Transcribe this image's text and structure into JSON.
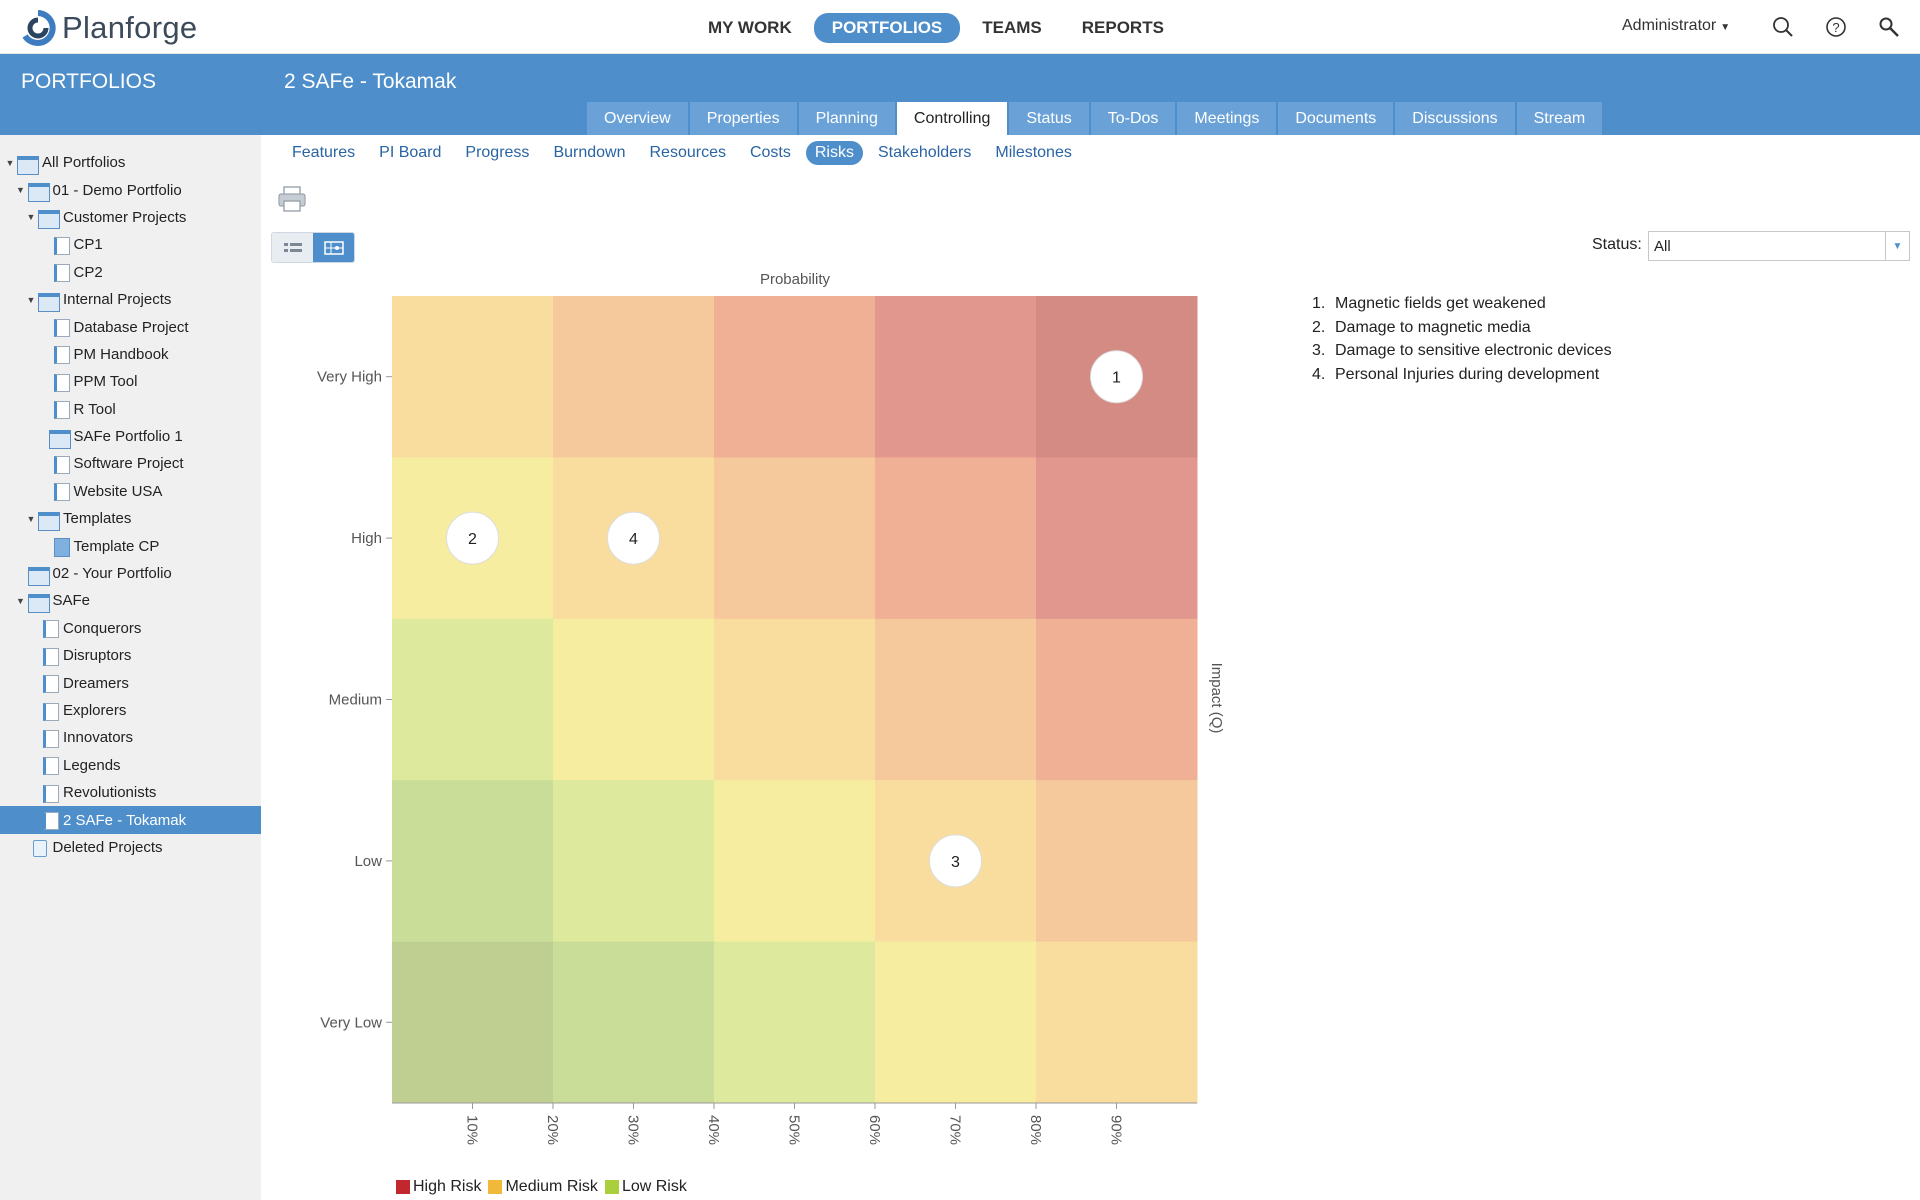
{
  "app": {
    "logo_text": "Planforge"
  },
  "nav": {
    "items": [
      {
        "label": "MY WORK",
        "active": false
      },
      {
        "label": "PORTFOLIOS",
        "active": true
      },
      {
        "label": "TEAMS",
        "active": false
      },
      {
        "label": "REPORTS",
        "active": false
      }
    ],
    "user": "Administrator"
  },
  "sidebar": {
    "title": "PORTFOLIOS",
    "tree": [
      {
        "label": "All Portfolios",
        "depth": 0,
        "twisty": "open",
        "icon": "portfolio"
      },
      {
        "label": "01 - Demo Portfolio",
        "depth": 1,
        "twisty": "open",
        "icon": "portfolio"
      },
      {
        "label": "Customer Projects",
        "depth": 2,
        "twisty": "open",
        "icon": "portfolio"
      },
      {
        "label": "CP1",
        "depth": 3,
        "twisty": "none",
        "icon": "project"
      },
      {
        "label": "CP2",
        "depth": 3,
        "twisty": "none",
        "icon": "project"
      },
      {
        "label": "Internal Projects",
        "depth": 2,
        "twisty": "open",
        "icon": "portfolio"
      },
      {
        "label": "Database Project",
        "depth": 3,
        "twisty": "none",
        "icon": "project"
      },
      {
        "label": "PM Handbook",
        "depth": 3,
        "twisty": "none",
        "icon": "project"
      },
      {
        "label": "PPM Tool",
        "depth": 3,
        "twisty": "none",
        "icon": "project"
      },
      {
        "label": "R Tool",
        "depth": 3,
        "twisty": "none",
        "icon": "project"
      },
      {
        "label": "SAFe Portfolio 1",
        "depth": 3,
        "twisty": "none",
        "icon": "portfolio"
      },
      {
        "label": "Software Project",
        "depth": 3,
        "twisty": "none",
        "icon": "project"
      },
      {
        "label": "Website USA",
        "depth": 3,
        "twisty": "none",
        "icon": "project"
      },
      {
        "label": "Templates",
        "depth": 2,
        "twisty": "open",
        "icon": "portfolio"
      },
      {
        "label": "Template CP",
        "depth": 3,
        "twisty": "none",
        "icon": "template"
      },
      {
        "label": "02 - Your Portfolio",
        "depth": 1,
        "twisty": "none",
        "icon": "portfolio"
      },
      {
        "label": "SAFe",
        "depth": 1,
        "twisty": "open",
        "icon": "portfolio"
      },
      {
        "label": "Conquerors",
        "depth": 2,
        "twisty": "none",
        "icon": "project"
      },
      {
        "label": "Disruptors",
        "depth": 2,
        "twisty": "none",
        "icon": "project"
      },
      {
        "label": "Dreamers",
        "depth": 2,
        "twisty": "none",
        "icon": "project"
      },
      {
        "label": "Explorers",
        "depth": 2,
        "twisty": "none",
        "icon": "project"
      },
      {
        "label": "Innovators",
        "depth": 2,
        "twisty": "none",
        "icon": "project"
      },
      {
        "label": "Legends",
        "depth": 2,
        "twisty": "none",
        "icon": "project"
      },
      {
        "label": "Revolutionists",
        "depth": 2,
        "twisty": "none",
        "icon": "project"
      },
      {
        "label": "2 SAFe - Tokamak",
        "depth": 2,
        "twisty": "none",
        "icon": "project",
        "selected": true
      },
      {
        "label": "Deleted Projects",
        "depth": 1,
        "twisty": "none",
        "icon": "deleted"
      }
    ]
  },
  "page": {
    "title": "2 SAFe - Tokamak",
    "tabs": [
      {
        "label": "Overview",
        "active": false
      },
      {
        "label": "Properties",
        "active": false
      },
      {
        "label": "Planning",
        "active": false
      },
      {
        "label": "Controlling",
        "active": true
      },
      {
        "label": "Status",
        "active": false
      },
      {
        "label": "To-Dos",
        "active": false
      },
      {
        "label": "Meetings",
        "active": false
      },
      {
        "label": "Documents",
        "active": false
      },
      {
        "label": "Discussions",
        "active": false
      },
      {
        "label": "Stream",
        "active": false
      }
    ],
    "subtabs": [
      {
        "label": "Features",
        "active": false
      },
      {
        "label": "PI Board",
        "active": false
      },
      {
        "label": "Progress",
        "active": false
      },
      {
        "label": "Burndown",
        "active": false
      },
      {
        "label": "Resources",
        "active": false
      },
      {
        "label": "Costs",
        "active": false
      },
      {
        "label": "Risks",
        "active": true
      },
      {
        "label": "Stakeholders",
        "active": false
      },
      {
        "label": "Milestones",
        "active": false
      }
    ],
    "status_filter": {
      "label": "Status:",
      "value": "All"
    },
    "risks": [
      {
        "num": "1.",
        "label": "Magnetic fields get weakened"
      },
      {
        "num": "2.",
        "label": "Damage to magnetic media"
      },
      {
        "num": "3.",
        "label": "Damage to sensitive electronic devices"
      },
      {
        "num": "4.",
        "label": "Personal Injuries during development"
      }
    ]
  },
  "chart_data": {
    "type": "heatmap",
    "xlabel": "Probability",
    "ylabel": "Impact (Q)",
    "x_ticks": [
      "10%",
      "20%",
      "30%",
      "40%",
      "50%",
      "60%",
      "70%",
      "80%",
      "90%"
    ],
    "y_levels_top_to_bottom": [
      "Very High",
      "High",
      "Medium",
      "Low",
      "Very Low"
    ],
    "cells_top_to_bottom": [
      [
        "#f8dd9f",
        "#f5c99c",
        "#efb095",
        "#e1968e",
        "#d38b84"
      ],
      [
        "#f6eda0",
        "#f8dd9f",
        "#f5c99c",
        "#efb095",
        "#e1968e"
      ],
      [
        "#dde99d",
        "#f6eda0",
        "#f8dd9f",
        "#f5c99c",
        "#efb095"
      ],
      [
        "#c9dd98",
        "#dde99d",
        "#f6eda0",
        "#f8dd9f",
        "#f5c99c"
      ],
      [
        "#bfcf91",
        "#c9dd98",
        "#dde99d",
        "#f6eda0",
        "#f8dd9f"
      ]
    ],
    "points": [
      {
        "label": "1",
        "probability": 0.9,
        "impact": "Very High"
      },
      {
        "label": "2",
        "probability": 0.1,
        "impact": "High"
      },
      {
        "label": "4",
        "probability": 0.3,
        "impact": "High"
      },
      {
        "label": "3",
        "probability": 0.7,
        "impact": "Low"
      }
    ],
    "legend": [
      {
        "label": "High Risk",
        "color": "#c0282d"
      },
      {
        "label": "Medium Risk",
        "color": "#f0b93a"
      },
      {
        "label": "Low Risk",
        "color": "#a9cf3c"
      }
    ]
  }
}
